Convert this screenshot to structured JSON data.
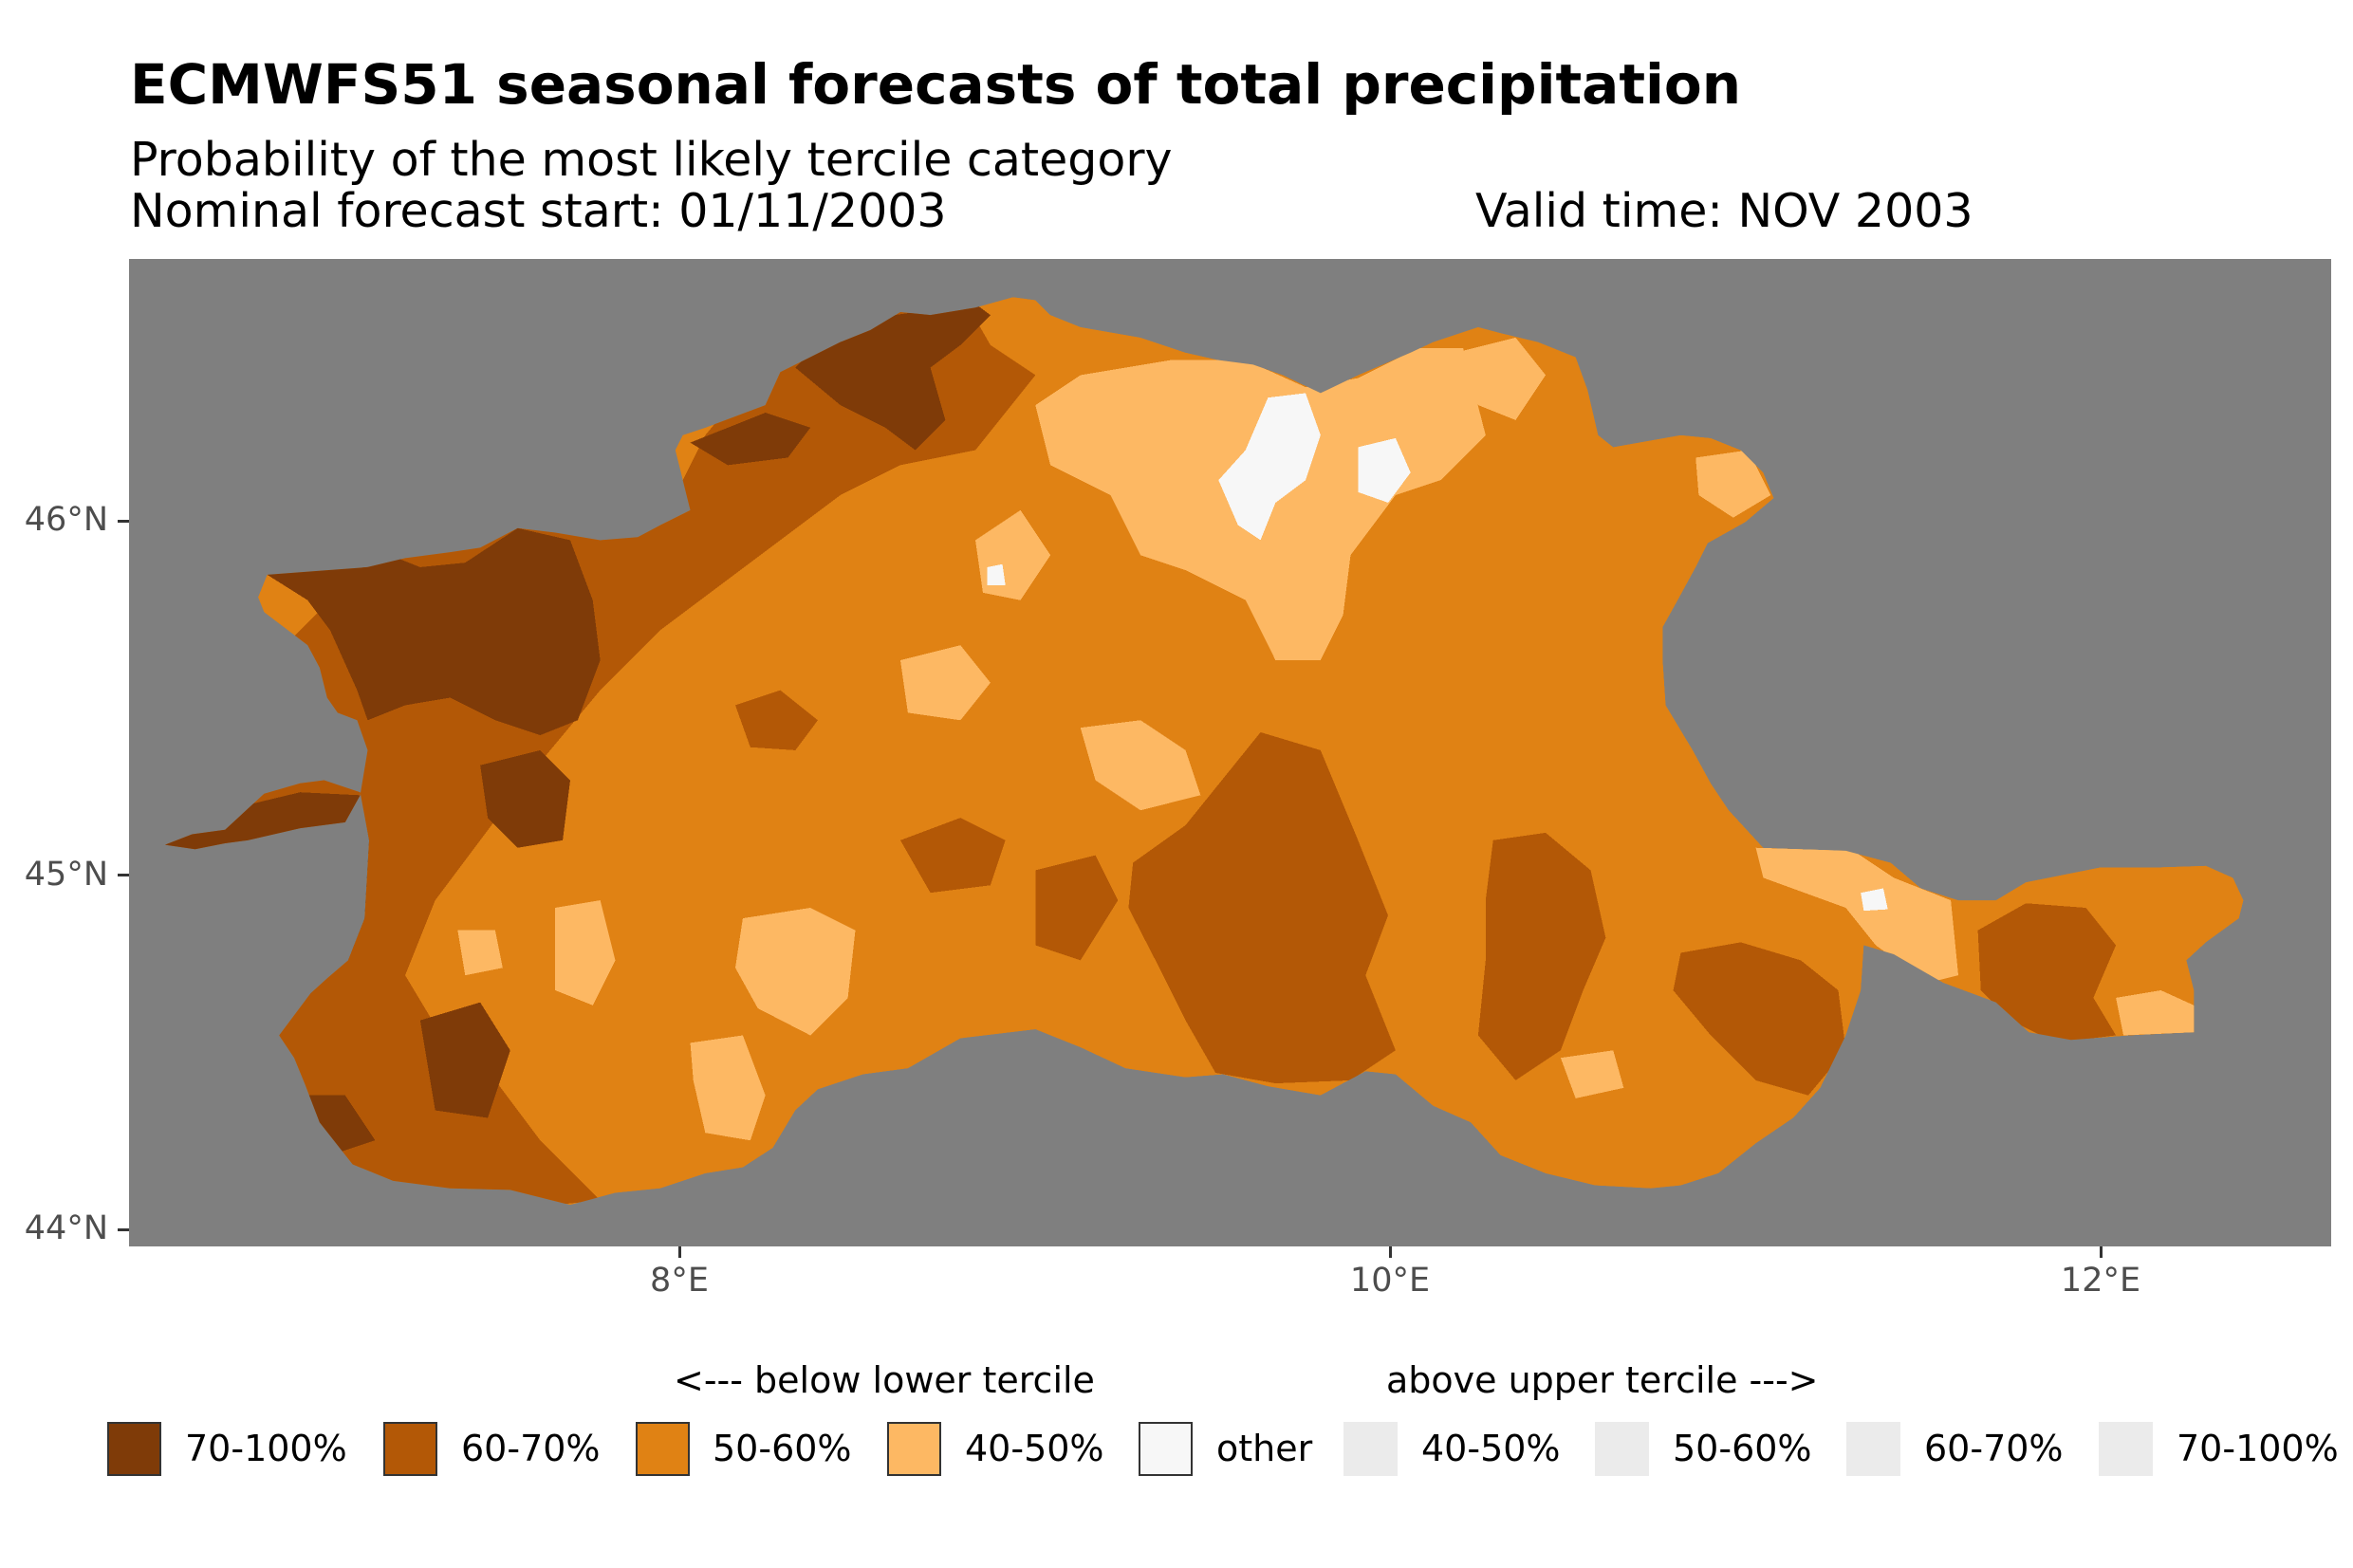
{
  "header": {
    "title": "ECMWFS51 seasonal forecasts of total precipitation",
    "subtitle": "Probability of the most likely tercile category",
    "forecast_start": "Nominal forecast start: 01/11/2003",
    "valid_time": "Valid time: NOV 2003"
  },
  "chart_data": {
    "type": "heatmap",
    "title": "ECMWFS51 seasonal forecasts of total precipitation",
    "subtitle": "Probability of the most likely tercile category",
    "variable": "total precipitation",
    "xlabel": "",
    "ylabel": "",
    "x_ticks": [
      {
        "value": 8,
        "label": "8°E"
      },
      {
        "value": 10,
        "label": "10°E"
      },
      {
        "value": 12,
        "label": "12°E"
      }
    ],
    "y_ticks": [
      {
        "value": 46,
        "label": "46°N"
      },
      {
        "value": 45,
        "label": "45°N"
      },
      {
        "value": 44,
        "label": "44°N"
      }
    ],
    "xlim": [
      6.45,
      12.65
    ],
    "ylim": [
      43.97,
      46.63
    ],
    "background_color": "#7f7f7f",
    "legend_position": "bottom",
    "legend": {
      "below_title": "<--- below lower tercile",
      "above_title": "above upper tercile --->",
      "below": [
        {
          "label": "70-100%",
          "color": "#7f3b08"
        },
        {
          "label": "60-70%",
          "color": "#b35806"
        },
        {
          "label": "50-60%",
          "color": "#e08214"
        },
        {
          "label": "40-50%",
          "color": "#fdb863"
        }
      ],
      "other": {
        "label": "other",
        "color": "#f7f7f7"
      },
      "above": [
        {
          "label": "40-50%",
          "color": "#ebebeb"
        },
        {
          "label": "50-60%",
          "color": "#ebebeb"
        },
        {
          "label": "60-70%",
          "color": "#ebebeb"
        },
        {
          "label": "70-100%",
          "color": "#ebebeb"
        }
      ]
    },
    "dominant_category": "below lower tercile 50-60%"
  }
}
